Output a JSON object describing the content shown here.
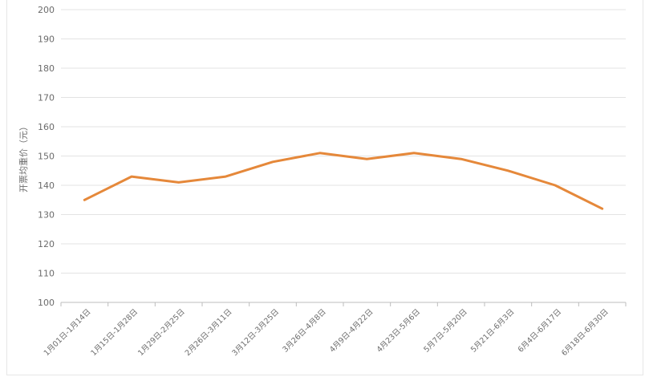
{
  "chart_data": {
    "type": "line",
    "ylabel": "开票均重价（元）",
    "ylim": [
      100,
      200
    ],
    "yticks": [
      100,
      110,
      120,
      130,
      140,
      150,
      160,
      170,
      180,
      190,
      200
    ],
    "categories": [
      "1月01日-1月14日",
      "1月15日-1月28日",
      "1月29日-2月25日",
      "2月26日-3月11日",
      "3月12日-3月25日",
      "3月26日-4月8日",
      "4月9日-4月22日",
      "4月23日-5月6日",
      "5月7日-5月20日",
      "5月21日-6月3日",
      "6月4日-6月17日",
      "6月18日-6月30日"
    ],
    "series": [
      {
        "values": [
          135,
          143,
          141,
          143,
          148,
          151,
          149,
          151,
          149,
          145,
          140,
          132
        ]
      }
    ],
    "grid": true,
    "colors": {
      "line": "#e5883a",
      "grid": "#e3e3e3",
      "axis": "#bdbdbd"
    }
  }
}
